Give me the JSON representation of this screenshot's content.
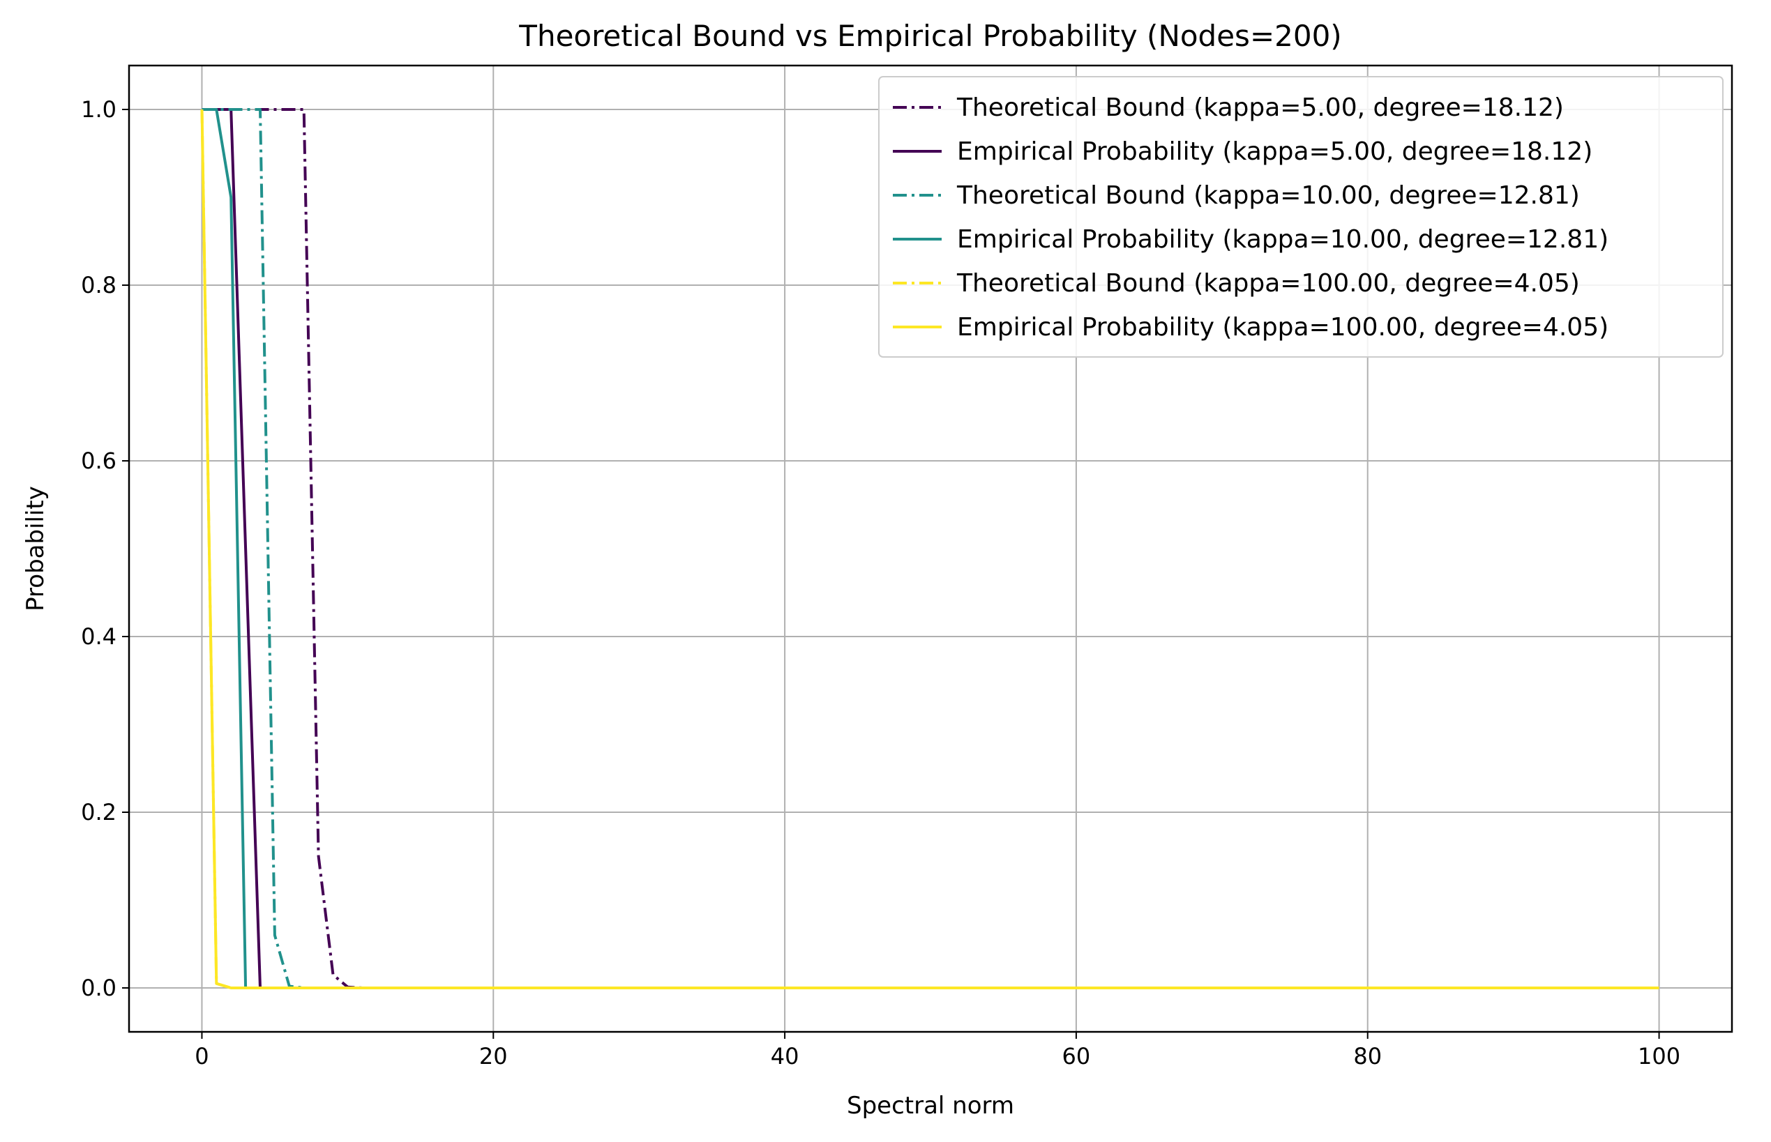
{
  "chart_data": {
    "type": "line",
    "title": "Theoretical Bound vs Empirical Probability (Nodes=200)",
    "xlabel": "Spectral norm",
    "ylabel": "Probability",
    "xlim": [
      -5,
      105
    ],
    "ylim": [
      -0.05,
      1.05
    ],
    "xticks": [
      0,
      20,
      40,
      60,
      80,
      100
    ],
    "xtick_labels": [
      "0",
      "20",
      "40",
      "60",
      "80",
      "100"
    ],
    "yticks": [
      0.0,
      0.2,
      0.4,
      0.6,
      0.8,
      1.0
    ],
    "ytick_labels": [
      "0.0",
      "0.2",
      "0.4",
      "0.6",
      "0.8",
      "1.0"
    ],
    "grid": true,
    "legend_position": "top-right",
    "series": [
      {
        "name": "Theoretical Bound (kappa=5.00, degree=18.12)",
        "color": "#440154",
        "style": "dashdot",
        "x": [
          0,
          1,
          2,
          3,
          4,
          5,
          6,
          7,
          8,
          9,
          10,
          11,
          100
        ],
        "y": [
          1.0,
          1.0,
          1.0,
          1.0,
          1.0,
          1.0,
          1.0,
          1.0,
          0.15,
          0.015,
          0.001,
          0.0,
          0.0
        ]
      },
      {
        "name": "Empirical Probability (kappa=5.00, degree=18.12)",
        "color": "#440154",
        "style": "solid",
        "x": [
          0,
          1,
          2,
          3,
          4,
          5,
          100
        ],
        "y": [
          1.0,
          1.0,
          1.0,
          0.5,
          0.0,
          0.0,
          0.0
        ]
      },
      {
        "name": "Theoretical Bound (kappa=10.00, degree=12.81)",
        "color": "#21918c",
        "style": "dashdot",
        "x": [
          0,
          1,
          2,
          3,
          4,
          5,
          6,
          7,
          100
        ],
        "y": [
          1.0,
          1.0,
          1.0,
          1.0,
          1.0,
          0.06,
          0.002,
          0.0,
          0.0
        ]
      },
      {
        "name": "Empirical Probability (kappa=10.00, degree=12.81)",
        "color": "#21918c",
        "style": "solid",
        "x": [
          0,
          1,
          2,
          3,
          4,
          100
        ],
        "y": [
          1.0,
          1.0,
          0.9,
          0.0,
          0.0,
          0.0
        ]
      },
      {
        "name": "Theoretical Bound (kappa=100.00, degree=4.05)",
        "color": "#fde725",
        "style": "dashdot",
        "x": [
          0,
          1,
          2,
          3,
          100
        ],
        "y": [
          1.0,
          0.005,
          0.0,
          0.0,
          0.0
        ]
      },
      {
        "name": "Empirical Probability (kappa=100.00, degree=4.05)",
        "color": "#fde725",
        "style": "solid",
        "x": [
          0,
          1,
          2,
          3,
          100
        ],
        "y": [
          1.0,
          0.005,
          0.0,
          0.0,
          0.0
        ]
      }
    ]
  }
}
